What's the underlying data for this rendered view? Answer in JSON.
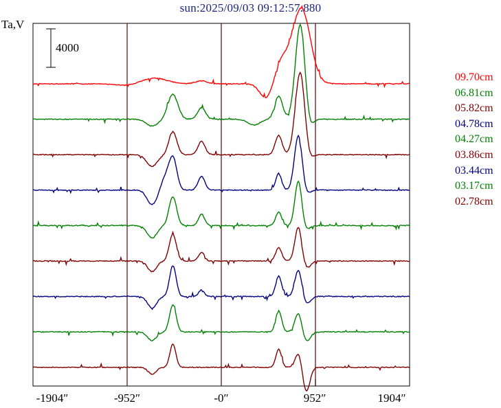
{
  "title": "sun:2025/09/03 09:12:57.880",
  "ylabel": "Ta,V",
  "scale_bar": {
    "label": "4000",
    "value": 4000
  },
  "colors": {
    "red": "#ff0000",
    "green": "#008000",
    "maroon": "#800000",
    "navy": "#000080",
    "vline": "#5a1a1a"
  },
  "chart_data": {
    "type": "line",
    "title": "sun:2025/09/03 09:12:57.880",
    "ylabel": "Ta,V",
    "xlabel": "",
    "xlim": [
      -1904,
      1904
    ],
    "xticks": [
      "-1904″",
      "-952″",
      "-0″",
      "952″",
      "1904″"
    ],
    "xtick_values": [
      -1904,
      -952,
      0,
      952,
      1904
    ],
    "vlines": [
      -952,
      0,
      952
    ],
    "legend_position": "right",
    "series": [
      {
        "name": "09.70cm",
        "color": "#ff0000",
        "peaks": [
          [
            -940,
            -180,
            110
          ],
          [
            -680,
            600,
            130
          ],
          [
            -200,
            300,
            60
          ],
          [
            470,
            -1900,
            70
          ],
          [
            600,
            2400,
            80
          ],
          [
            810,
            7800,
            90
          ]
        ]
      },
      {
        "name": "06.81cm",
        "color": "#008000",
        "peaks": [
          [
            -700,
            -700,
            60
          ],
          [
            -490,
            2600,
            50
          ],
          [
            -200,
            1200,
            40
          ],
          [
            330,
            -600,
            60
          ],
          [
            580,
            2400,
            40
          ],
          [
            800,
            10000,
            50
          ],
          [
            880,
            -1500,
            40
          ]
        ]
      },
      {
        "name": "05.82cm",
        "color": "#800000",
        "peaks": [
          [
            -700,
            -1200,
            55
          ],
          [
            -490,
            2400,
            40
          ],
          [
            -200,
            1400,
            35
          ],
          [
            580,
            2000,
            35
          ],
          [
            800,
            8800,
            50
          ],
          [
            870,
            -1300,
            40
          ]
        ]
      },
      {
        "name": "04.78cm",
        "color": "#000080",
        "peaks": [
          [
            -700,
            -1500,
            50
          ],
          [
            -570,
            1200,
            40
          ],
          [
            -490,
            3400,
            40
          ],
          [
            -200,
            1400,
            35
          ],
          [
            580,
            1700,
            30
          ],
          [
            780,
            5800,
            40
          ],
          [
            850,
            -600,
            40
          ]
        ]
      },
      {
        "name": "04.27cm",
        "color": "#008000",
        "peaks": [
          [
            -700,
            -1300,
            50
          ],
          [
            -490,
            3000,
            38
          ],
          [
            -200,
            1200,
            30
          ],
          [
            580,
            1400,
            30
          ],
          [
            780,
            4700,
            35
          ],
          [
            850,
            -500,
            40
          ]
        ]
      },
      {
        "name": "03.86cm",
        "color": "#800000",
        "peaks": [
          [
            -700,
            -1100,
            45
          ],
          [
            -490,
            2800,
            35
          ],
          [
            -200,
            900,
            30
          ],
          [
            580,
            1400,
            30
          ],
          [
            780,
            3600,
            35
          ],
          [
            860,
            -800,
            40
          ]
        ]
      },
      {
        "name": "03.44cm",
        "color": "#000080",
        "peaks": [
          [
            -700,
            -1200,
            45
          ],
          [
            -490,
            3200,
            33
          ],
          [
            -200,
            700,
            28
          ],
          [
            580,
            2100,
            30
          ],
          [
            780,
            2800,
            35
          ],
          [
            860,
            -800,
            40
          ]
        ]
      },
      {
        "name": "03.17cm",
        "color": "#008000",
        "peaks": [
          [
            -700,
            -900,
            45
          ],
          [
            -490,
            2800,
            33
          ],
          [
            580,
            2200,
            30
          ],
          [
            780,
            2000,
            35
          ],
          [
            860,
            -1000,
            40
          ]
        ]
      },
      {
        "name": "02.78cm",
        "color": "#800000",
        "peaks": [
          [
            -700,
            -700,
            40
          ],
          [
            -490,
            2400,
            30
          ],
          [
            580,
            1900,
            28
          ],
          [
            780,
            1500,
            32
          ],
          [
            860,
            -2500,
            35
          ]
        ]
      }
    ]
  }
}
